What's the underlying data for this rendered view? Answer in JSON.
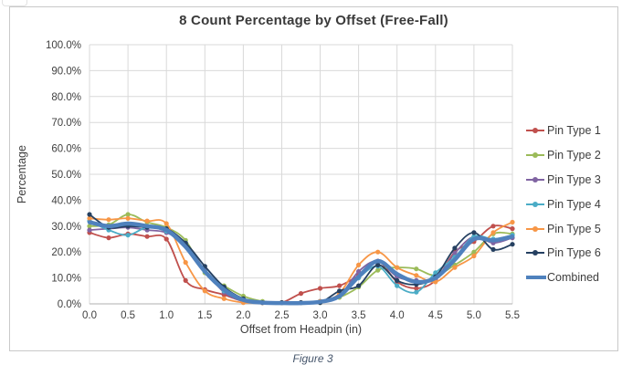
{
  "caption": "Figure 3",
  "chart_data": {
    "type": "line",
    "title": "8 Count Percentage by Offset (Free-Fall)",
    "grid": true,
    "legend_position": "right",
    "x_axis": {
      "title": "Offset from Headpin (in)",
      "min": 0,
      "max": 5.5,
      "gridlines": [
        0,
        0.5,
        1,
        1.5,
        2,
        2.5,
        3,
        3.5,
        4,
        4.5,
        5,
        5.5
      ],
      "tick_labels": [
        "0.0",
        "0.5",
        "1.0",
        "1.5",
        "2.0",
        "2.5",
        "3.0",
        "3.5",
        "4.0",
        "4.5",
        "5.0",
        "5.5"
      ]
    },
    "y_axis": {
      "title": "Percentage",
      "min": 0,
      "max": 100,
      "gridlines": [
        0,
        10,
        20,
        30,
        40,
        50,
        60,
        70,
        80,
        90,
        100
      ],
      "tick_labels": [
        "0.0%",
        "10.0%",
        "20.0%",
        "30.0%",
        "40.0%",
        "50.0%",
        "60.0%",
        "70.0%",
        "80.0%",
        "90.0%",
        "100.0%"
      ]
    },
    "x": [
      0,
      0.25,
      0.5,
      0.75,
      1,
      1.25,
      1.5,
      1.75,
      2,
      2.25,
      2.5,
      2.75,
      3,
      3.25,
      3.5,
      3.75,
      4,
      4.25,
      4.5,
      4.75,
      5,
      5.25,
      5.5
    ],
    "series": [
      {
        "name": "Pin Type 1",
        "color": "#C0504D",
        "marker": true,
        "line_width": 1.8,
        "values": [
          27.5,
          25.5,
          27,
          26,
          25,
          9,
          5.5,
          3.5,
          1,
          0.5,
          0.5,
          4,
          6,
          7,
          11,
          16.5,
          8.5,
          6,
          9,
          20,
          24,
          30,
          29
        ]
      },
      {
        "name": "Pin Type 2",
        "color": "#9BBB59",
        "marker": true,
        "line_width": 1.8,
        "values": [
          30,
          30.5,
          34.5,
          31.5,
          29.5,
          24.5,
          12,
          7,
          3,
          1,
          0.5,
          0.5,
          0.5,
          2.5,
          6.5,
          13,
          14,
          13.5,
          11,
          15,
          20,
          27,
          27
        ]
      },
      {
        "name": "Pin Type 3",
        "color": "#8064A2",
        "marker": true,
        "line_width": 1.8,
        "values": [
          28.5,
          29,
          29.5,
          28.5,
          27.5,
          23,
          13,
          4.5,
          1,
          0.5,
          0.5,
          0.5,
          1,
          3,
          12.5,
          16.5,
          10.5,
          9,
          9.5,
          19.5,
          26,
          23.5,
          25.5
        ]
      },
      {
        "name": "Pin Type 4",
        "color": "#4BACC6",
        "marker": true,
        "line_width": 1.8,
        "values": [
          32,
          28.5,
          26.5,
          29.5,
          28,
          23.5,
          12.5,
          5,
          1.5,
          0.5,
          0.5,
          0.5,
          1,
          3,
          10,
          14.5,
          7,
          4.5,
          12,
          18,
          26,
          25,
          26.5
        ]
      },
      {
        "name": "Pin Type 5",
        "color": "#F79646",
        "marker": true,
        "line_width": 1.8,
        "values": [
          33,
          32.5,
          33,
          32,
          31,
          16,
          5,
          2,
          0.5,
          0.5,
          0.5,
          0.5,
          1,
          4,
          15,
          20,
          14,
          11,
          8.5,
          14,
          18.5,
          27.5,
          31.5
        ]
      },
      {
        "name": "Pin Type 6",
        "color": "#254061",
        "marker": true,
        "line_width": 1.8,
        "values": [
          34.5,
          29.5,
          30,
          29.5,
          29,
          23.5,
          14.5,
          6.5,
          2,
          0.5,
          0.5,
          0.5,
          0.5,
          5,
          7,
          15,
          9,
          7.5,
          10.5,
          21.5,
          27.5,
          21,
          23
        ]
      },
      {
        "name": "Combined",
        "color": "#4F81BD",
        "marker": false,
        "line_width": 4.5,
        "values": [
          31.5,
          30,
          31,
          30,
          28.5,
          22,
          12.5,
          5.5,
          1.5,
          0.5,
          0.3,
          0.3,
          0.8,
          3,
          10.5,
          16.5,
          11.5,
          8.5,
          10,
          17,
          25,
          24.5,
          26
        ]
      }
    ]
  }
}
